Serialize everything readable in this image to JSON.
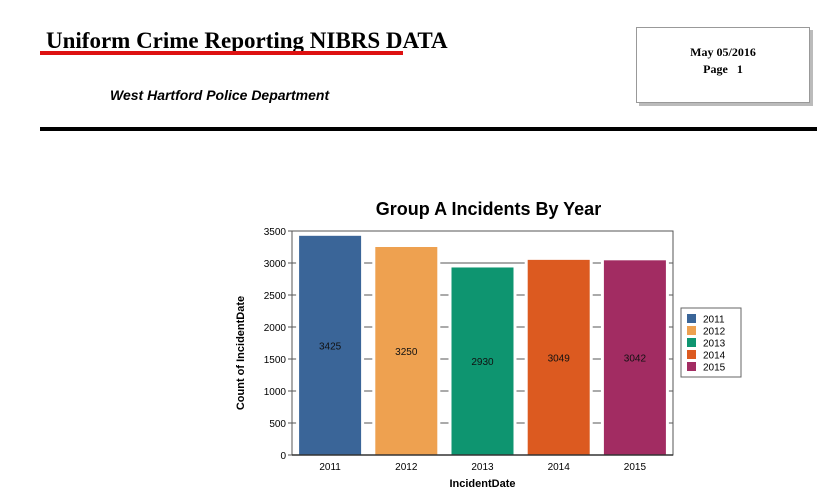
{
  "header": {
    "title": "Uniform Crime Reporting NIBRS DATA",
    "department": "West Hartford Police Department",
    "date": "May 05/2016",
    "page": "Page   1"
  },
  "chart_data": {
    "type": "bar",
    "title": "Group A Incidents By Year",
    "xlabel": "IncidentDate",
    "ylabel": "Count of IncidentDate",
    "categories": [
      "2011",
      "2012",
      "2013",
      "2014",
      "2015"
    ],
    "values": [
      3425,
      3250,
      2930,
      3049,
      3042
    ],
    "colors": [
      "#3a6598",
      "#eea150",
      "#0e9570",
      "#dc5a20",
      "#a22c62"
    ],
    "ylim": [
      0,
      3500
    ],
    "yticks": [
      0,
      500,
      1000,
      1500,
      2000,
      2500,
      3000,
      3500
    ],
    "grid": true,
    "legend": {
      "position": "right",
      "entries": [
        "2011",
        "2012",
        "2013",
        "2014",
        "2015"
      ]
    }
  }
}
